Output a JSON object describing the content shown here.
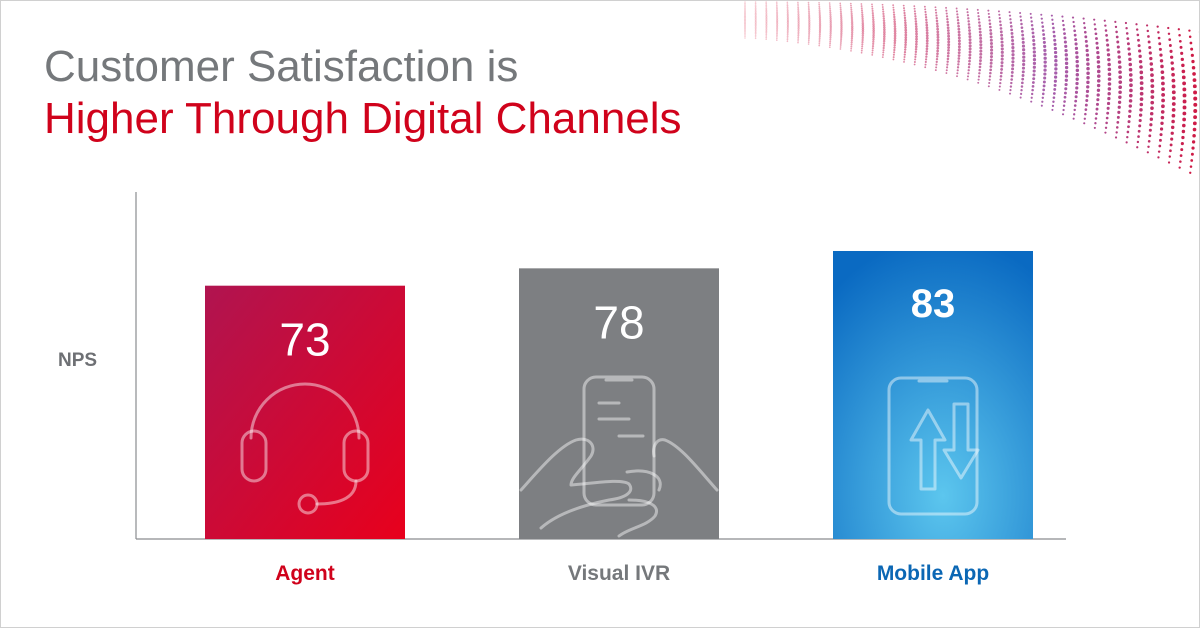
{
  "title": {
    "line1": "Customer Satisfaction is",
    "line2": "Higher Through Digital Channels",
    "line1_color": "#75787b",
    "line2_color": "#d0021b"
  },
  "chart_data": {
    "type": "bar",
    "title": "Customer Satisfaction is Higher Through Digital Channels",
    "ylabel": "NPS",
    "xlabel": "",
    "ylim": [
      0,
      90
    ],
    "grid": false,
    "legend": "none",
    "categories": [
      "Agent",
      "Visual IVR",
      "Mobile App"
    ],
    "values": [
      73,
      78,
      83
    ],
    "value_labels": [
      "73",
      "78",
      "83"
    ],
    "bar_colors": [
      "#c8102e",
      "#7d7f82",
      "#1c7fce"
    ],
    "label_colors": [
      "#d0021b",
      "#75787b",
      "#0b67b4"
    ],
    "icons": [
      "headset-icon",
      "smartphone-in-hands-icon",
      "mobile-transfer-icon"
    ]
  }
}
